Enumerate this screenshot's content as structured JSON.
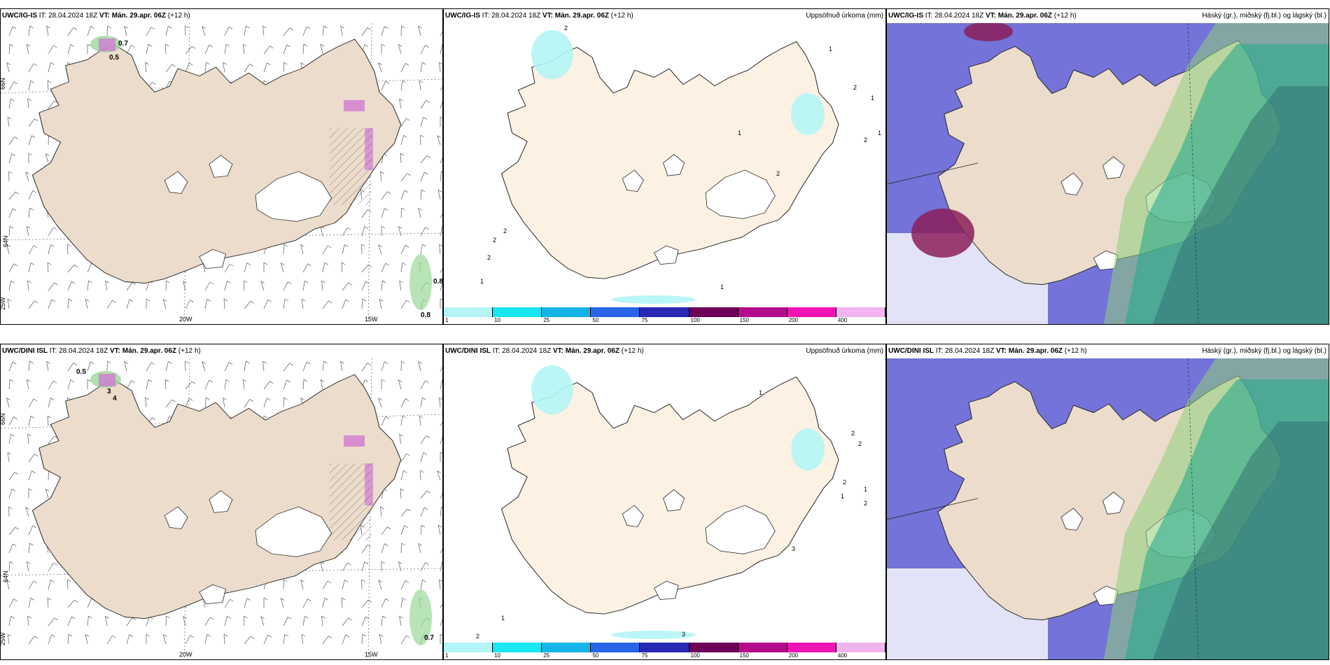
{
  "rows": [
    {
      "model": "UWC/IG-IS",
      "it": "IT: 28.04.2024 18Z",
      "vt_label": "VT:",
      "vt": "Mán. 29.apr. 06Z",
      "lead": "(+12 h)",
      "wind_values": [
        "0.7",
        "0.5",
        "0.8",
        "0.8"
      ],
      "precip_values": [
        "2",
        "1",
        "2",
        "2",
        "1",
        "2",
        "1",
        "1",
        "2",
        "2",
        "1",
        "1",
        "2"
      ]
    },
    {
      "model": "UWC/DINI ISL",
      "it": "IT: 28.04.2024 18Z",
      "vt_label": "VT:",
      "vt": "Mán. 29.apr. 06Z",
      "lead": "(+12 h)",
      "wind_values": [
        "0.5",
        "3",
        "4",
        "0.7"
      ],
      "precip_values": [
        "1",
        "2",
        "2",
        "1",
        "2",
        "1",
        "3",
        "2",
        "1",
        "2",
        "3"
      ]
    }
  ],
  "precip_title": "Uppsöfnuð úrkoma (mm)",
  "cloud_title": "Háský (gr.), miðský (fj.bl.) og lágský (bl.)",
  "axis_labels": {
    "lat_upper": "66N",
    "lat_lower": "64N",
    "lat_low": "25W",
    "lon_a": "20W",
    "lon_b": "15W"
  },
  "colorbar": {
    "labels": [
      "1",
      "10",
      "25",
      "50",
      "75",
      "100",
      "150",
      "200",
      "400"
    ],
    "colors": [
      "#b4f5f5",
      "#18e6f0",
      "#14b4e6",
      "#2864e6",
      "#2828b4",
      "#6e005a",
      "#b40a8c",
      "#f014b4",
      "#f0b4f0"
    ]
  },
  "colors": {
    "land": "#ecdccc",
    "land_precip": "#fdf1e4",
    "cloud_high": "#5a5ad2",
    "cloud_low": "#2aaa8c",
    "cloud_mid": "#8fd07a"
  }
}
